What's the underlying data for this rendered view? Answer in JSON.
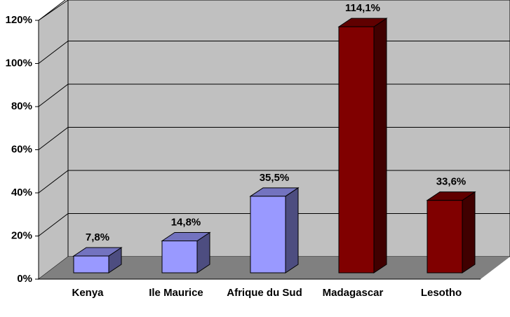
{
  "chart_data": {
    "type": "bar3d",
    "categories": [
      "Kenya",
      "Ile Maurice",
      "Afrique du Sud",
      "Madagascar",
      "Lesotho"
    ],
    "values": [
      7.8,
      14.8,
      35.5,
      114.1,
      33.6
    ],
    "value_labels": [
      "7,8%",
      "14,8%",
      "35,5%",
      "114,1%",
      "33,6%"
    ],
    "colors": [
      "#9999ff",
      "#9999ff",
      "#9999ff",
      "#800000",
      "#800000"
    ],
    "ylim": [
      0,
      120
    ],
    "yticks": [
      {
        "value": 0,
        "label": "0%"
      },
      {
        "value": 20,
        "label": "20%"
      },
      {
        "value": 40,
        "label": "40%"
      },
      {
        "value": 60,
        "label": "60%"
      },
      {
        "value": 80,
        "label": "80%"
      },
      {
        "value": 100,
        "label": "100%"
      },
      {
        "value": 120,
        "label": "120%"
      }
    ],
    "grid": true
  }
}
